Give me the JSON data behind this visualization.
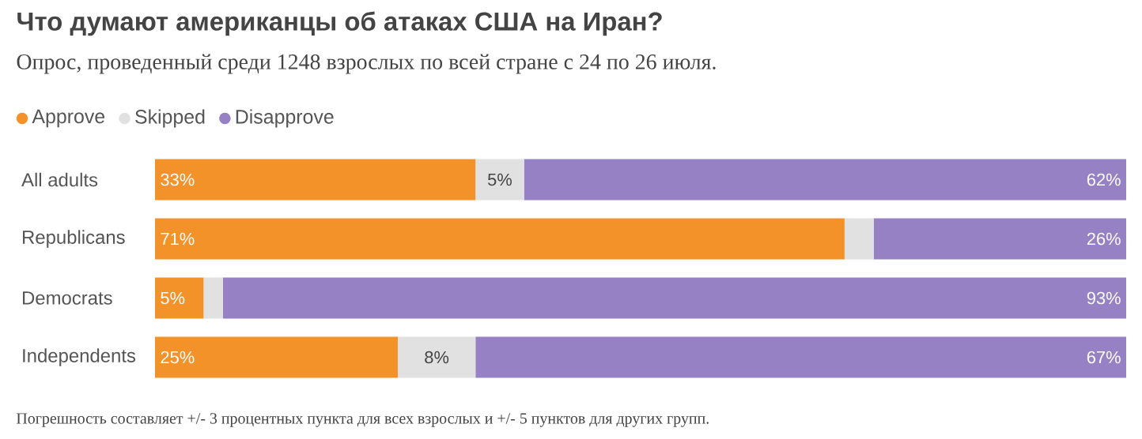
{
  "chart_data": {
    "type": "bar",
    "orientation": "horizontal",
    "stacked": true,
    "title": "Что думают американцы об атаках США на Иран?",
    "subtitle": "Опрос, проведенный среди 1248 взрослых по всей стране с 24 по 26 июля.",
    "categories": [
      "All adults",
      "Republicans",
      "Democrats",
      "Independents"
    ],
    "series": [
      {
        "name": "Approve",
        "color": "#f39229",
        "values": [
          33,
          71,
          5,
          25
        ],
        "value_labels": [
          "33%",
          "71%",
          "5%",
          "25%"
        ]
      },
      {
        "name": "Skipped",
        "color": "#e1e1e1",
        "values": [
          5,
          3,
          2,
          8
        ],
        "value_labels": [
          "5%",
          null,
          null,
          "8%"
        ]
      },
      {
        "name": "Disapprove",
        "color": "#9581c3",
        "values": [
          62,
          26,
          93,
          67
        ],
        "value_labels": [
          "62%",
          "26%",
          "93%",
          "67%"
        ]
      }
    ],
    "tick_labels": "y",
    "legend": "top left",
    "annotations": [
      "Погрешность составляет +/- 3 процентных пункта для всех взрослых и +/- 5 пунктов для других групп."
    ]
  }
}
